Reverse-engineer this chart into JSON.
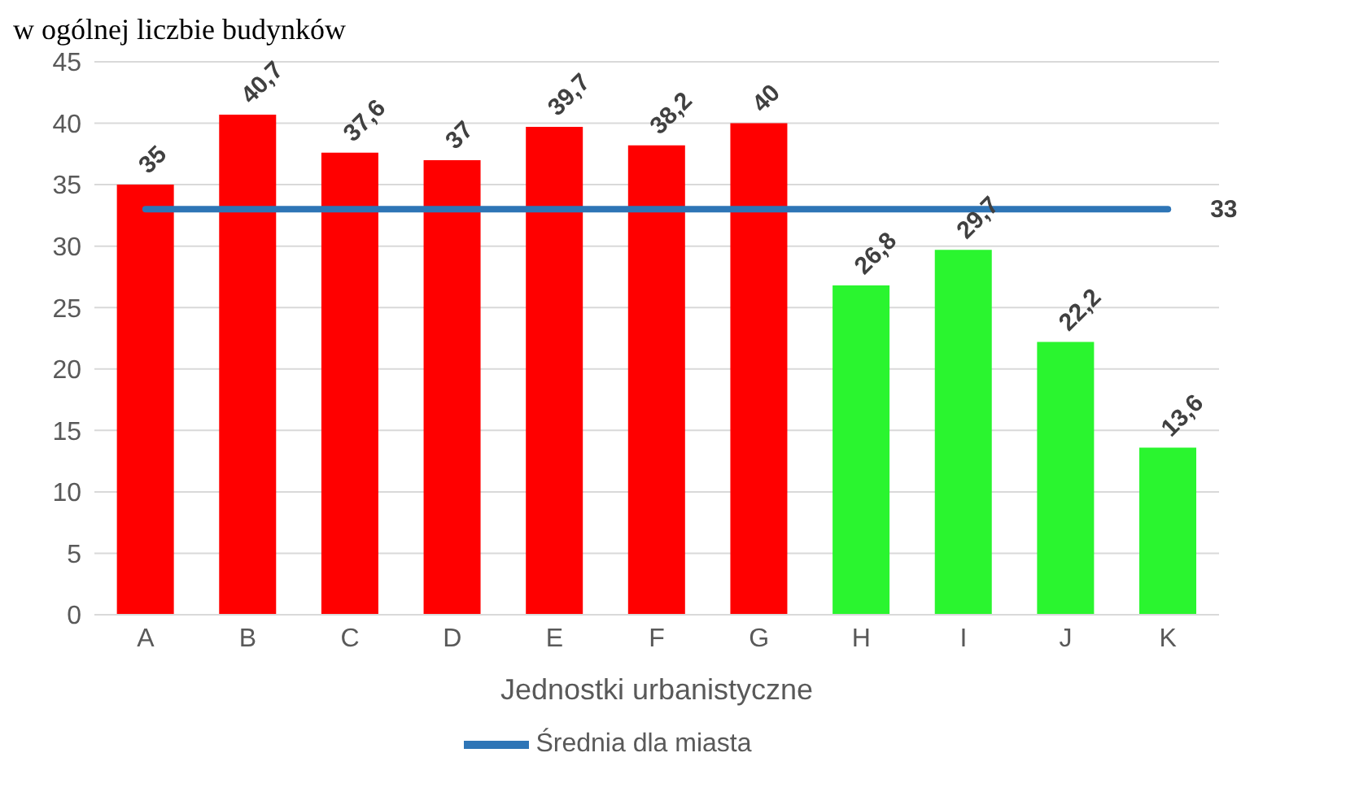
{
  "chart_data": {
    "type": "bar",
    "title": "w ogólnej liczbie budynków",
    "xlabel": "Jednostki urbanistyczne",
    "categories": [
      "A",
      "B",
      "C",
      "D",
      "E",
      "F",
      "G",
      "H",
      "I",
      "J",
      "K"
    ],
    "series": [
      {
        "type": "bar",
        "colors": [
          "#ff0000",
          "#ff0000",
          "#ff0000",
          "#ff0000",
          "#ff0000",
          "#ff0000",
          "#ff0000",
          "#2af52f",
          "#2af52f",
          "#2af52f",
          "#2af52f"
        ],
        "values": [
          35,
          40.7,
          37.6,
          37,
          39.7,
          38.2,
          40,
          26.8,
          29.7,
          22.2,
          13.6
        ],
        "value_labels": [
          "35",
          "40,7",
          "37,6",
          "37",
          "39,7",
          "38,2",
          "40",
          "26,8",
          "29,7",
          "22,2",
          "13,6"
        ]
      },
      {
        "type": "line",
        "name": "Średnia dla miasta",
        "color": "#2e75b6",
        "values": [
          33,
          33,
          33,
          33,
          33,
          33,
          33,
          33,
          33,
          33,
          33
        ],
        "value_labels": [
          null,
          null,
          null,
          null,
          null,
          null,
          null,
          null,
          null,
          null,
          "33"
        ]
      }
    ],
    "ylim": [
      0,
      45
    ],
    "yticks": [
      0,
      5,
      10,
      15,
      20,
      25,
      30,
      35,
      40,
      45
    ],
    "grid": "y",
    "legend": "bottom",
    "marker": "none"
  }
}
